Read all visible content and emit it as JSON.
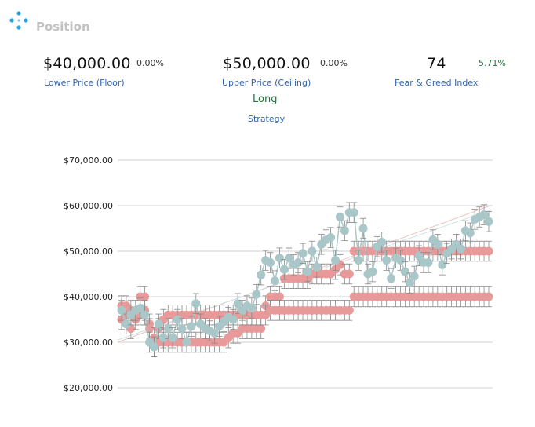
{
  "header": {
    "title": "Position",
    "logo_icon": "dots-network-icon"
  },
  "metrics": {
    "floor": {
      "value": "$40,000.00",
      "change": "0.00%",
      "label": "Lower Price (Floor)"
    },
    "ceiling": {
      "value": "$50,000.00",
      "change": "0.00%",
      "label": "Upper Price (Ceiling)"
    },
    "fear_greed": {
      "value": "74",
      "change": "5.71%",
      "label": "Fear & Greed Index"
    }
  },
  "strategy": {
    "value": "Long",
    "label": "Strategy"
  },
  "colors": {
    "accent_blue": "#2f65b0",
    "positive_green": "#1a7a3a",
    "floor_ceiling_series": "#e89a9a",
    "price_series": "#a9c7c9",
    "error_bars": "#888888"
  },
  "chart_data": {
    "type": "scatter",
    "y_ticks": [
      "$70,000.00",
      "$60,000.00",
      "$50,000.00",
      "$40,000.00",
      "$30,000.00",
      "$20,000.00"
    ],
    "ylim": [
      20000,
      70000
    ],
    "grid": true,
    "series": [
      {
        "values": [
          35000,
          36000,
          33000,
          35000,
          40000,
          40000,
          34000,
          29000,
          30000,
          30000,
          30000,
          30000,
          30000,
          30000,
          30000,
          30000,
          30000,
          30000,
          30000,
          30000,
          30000,
          30000,
          30000,
          31000,
          32000,
          32000,
          33000,
          33000,
          33000,
          33000,
          33000,
          38000,
          40000,
          40000,
          40000,
          44000,
          44000,
          44000,
          44000,
          44000,
          44000,
          45000,
          45000,
          45000,
          45000,
          45000,
          46000,
          47000,
          45000,
          45000,
          50000,
          50000,
          50000,
          50000,
          50000,
          50000,
          50000,
          50000,
          50000,
          50000,
          50000,
          50000,
          50000,
          50000,
          50000,
          50000,
          50000,
          50000,
          50000,
          50000,
          50000,
          50000,
          50000,
          50000,
          50000,
          50000,
          50000,
          50000,
          50000,
          50000
        ]
      },
      {
        "values": [
          38000,
          38000,
          37000,
          36000,
          36000,
          37000,
          33000,
          31000,
          33000,
          35000,
          36000,
          36000,
          36000,
          36000,
          36000,
          36000,
          36000,
          36000,
          36000,
          36000,
          36000,
          36000,
          36000,
          36000,
          36000,
          36000,
          36000,
          36000,
          36000,
          36000,
          36000,
          36000,
          37000,
          37000,
          37000,
          37000,
          37000,
          37000,
          37000,
          37000,
          37000,
          37000,
          37000,
          37000,
          37000,
          37000,
          37000,
          37000,
          37000,
          37000,
          40000,
          40000,
          40000,
          40000,
          40000,
          40000,
          40000,
          40000,
          40000,
          40000,
          40000,
          40000,
          40000,
          40000,
          40000,
          40000,
          40000,
          40000,
          40000,
          40000,
          40000,
          40000,
          40000,
          40000,
          40000,
          40000,
          40000,
          40000,
          40000,
          40000
        ]
      },
      {
        "values": [
          37000,
          34000,
          36000,
          37000,
          37500,
          36000,
          30000,
          29000,
          34000,
          31000,
          33000,
          31000,
          35000,
          33000,
          30000,
          33500,
          38500,
          34000,
          33000,
          32500,
          32000,
          33500,
          34500,
          35500,
          35000,
          38500,
          37000,
          38000,
          37500,
          40500,
          44800,
          48000,
          47500,
          43500,
          48500,
          46000,
          48500,
          47000,
          47500,
          49500,
          45500,
          50000,
          46500,
          51500,
          52500,
          53000,
          48000,
          57500,
          54500,
          58500,
          58500,
          48000,
          55000,
          45000,
          45500,
          51000,
          52000,
          48000,
          44000,
          48500,
          48000,
          45500,
          43000,
          44500,
          49000,
          47500,
          47500,
          52500,
          51500,
          47000,
          49500,
          50500,
          51500,
          50500,
          54500,
          54000,
          57000,
          57500,
          58000,
          56500
        ]
      }
    ]
  }
}
